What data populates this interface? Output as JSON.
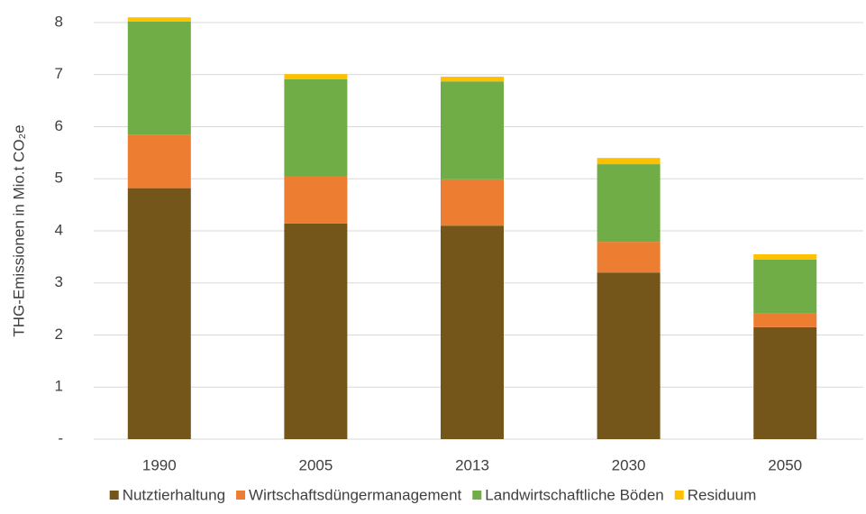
{
  "chart_data": {
    "type": "stacked_bar",
    "y_label": "THG-Emissionen in Mio.t CO₂e",
    "categories": [
      "1990",
      "2005",
      "2013",
      "2030",
      "2050"
    ],
    "series": [
      {
        "name": "Nutztierhaltung",
        "color": "#74561a",
        "values": [
          4.82,
          4.14,
          4.1,
          3.2,
          2.15
        ]
      },
      {
        "name": "Wirtschaftsdüngermanagement",
        "color": "#ed7d31",
        "values": [
          1.03,
          0.9,
          0.89,
          0.59,
          0.26
        ]
      },
      {
        "name": "Landwirtschaftliche Böden",
        "color": "#70ad47",
        "values": [
          2.17,
          1.87,
          1.88,
          1.49,
          1.04
        ]
      },
      {
        "name": "Residuum",
        "color": "#ffc000",
        "values": [
          0.08,
          0.1,
          0.09,
          0.12,
          0.1
        ]
      }
    ],
    "ylim": [
      0,
      8
    ],
    "yticks": [
      {
        "value": 0,
        "label": "-"
      },
      1,
      2,
      3,
      4,
      5,
      6,
      7,
      8
    ],
    "grid": true,
    "legend": "bottom"
  }
}
